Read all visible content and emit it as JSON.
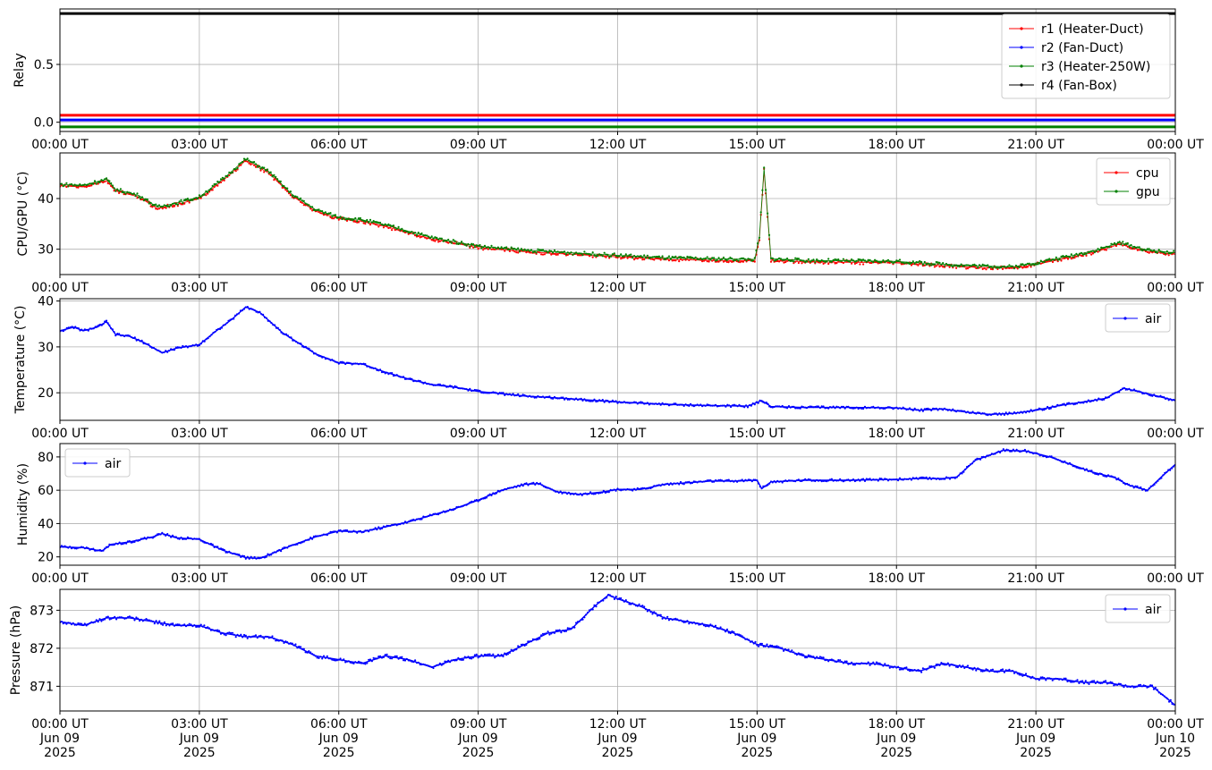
{
  "chart_data": [
    {
      "type": "line",
      "ylabel": "Relay",
      "ylim": [
        -0.08,
        0.98
      ],
      "yticks": [
        0.0,
        0.5
      ],
      "ytick_labels": [
        "0.0",
        "0.5"
      ],
      "xticks": [
        "00:00 UT",
        "03:00 UT",
        "06:00 UT",
        "09:00 UT",
        "12:00 UT",
        "15:00 UT",
        "18:00 UT",
        "21:00 UT",
        "00:00 UT"
      ],
      "grid": true,
      "legend": "top-right",
      "series": [
        {
          "name": "r1 (Heater-Duct)",
          "color": "#ff0000",
          "values": [
            [
              0,
              0.06
            ],
            [
              24,
              0.06
            ]
          ]
        },
        {
          "name": "r2 (Fan-Duct)",
          "color": "#0000ff",
          "values": [
            [
              0,
              0.02
            ],
            [
              24,
              0.02
            ]
          ]
        },
        {
          "name": "r3 (Heater-250W)",
          "color": "#008000",
          "values": [
            [
              0,
              -0.04
            ],
            [
              24,
              -0.04
            ]
          ]
        },
        {
          "name": "r4 (Fan-Box)",
          "color": "#000000",
          "values": [
            [
              0,
              0.94
            ],
            [
              24,
              0.94
            ]
          ]
        }
      ]
    },
    {
      "type": "line",
      "ylabel": "CPU/GPU (°C)",
      "ylim": [
        25,
        49
      ],
      "yticks": [
        30,
        40
      ],
      "ytick_labels": [
        "30",
        "40"
      ],
      "xticks": [
        "00:00 UT",
        "03:00 UT",
        "06:00 UT",
        "09:00 UT",
        "12:00 UT",
        "15:00 UT",
        "18:00 UT",
        "21:00 UT",
        "00:00 UT"
      ],
      "grid": true,
      "legend": "top-right",
      "series": [
        {
          "name": "cpu",
          "color": "#ff0000",
          "values": [
            [
              0,
              42.5
            ],
            [
              0.5,
              42.3
            ],
            [
              1,
              43.5
            ],
            [
              1.2,
              41.5
            ],
            [
              1.7,
              40.3
            ],
            [
              2.1,
              38
            ],
            [
              2.5,
              38.8
            ],
            [
              3,
              40
            ],
            [
              3.5,
              43.5
            ],
            [
              4,
              47.5
            ],
            [
              4.5,
              45
            ],
            [
              5,
              40.5
            ],
            [
              5.5,
              37.5
            ],
            [
              6,
              36
            ],
            [
              6.5,
              35.5
            ],
            [
              7,
              34.5
            ],
            [
              8,
              32
            ],
            [
              9,
              30.3
            ],
            [
              10,
              29.5
            ],
            [
              11,
              29
            ],
            [
              12,
              28.5
            ],
            [
              13,
              28
            ],
            [
              14,
              27.8
            ],
            [
              14.95,
              27.7
            ],
            [
              15.05,
              32
            ],
            [
              15.15,
              45.5
            ],
            [
              15.3,
              27.8
            ],
            [
              16,
              27.5
            ],
            [
              17,
              27.4
            ],
            [
              18,
              27.3
            ],
            [
              18.5,
              27
            ],
            [
              19.5,
              26.5
            ],
            [
              20.5,
              26.2
            ],
            [
              21,
              27
            ],
            [
              21.8,
              28.5
            ],
            [
              22.3,
              29.5
            ],
            [
              22.8,
              31
            ],
            [
              23.4,
              29.5
            ],
            [
              24,
              29
            ]
          ]
        },
        {
          "name": "gpu",
          "color": "#008000",
          "values": [
            [
              0,
              42.8
            ],
            [
              0.5,
              42.6
            ],
            [
              1,
              43.8
            ],
            [
              1.2,
              41.8
            ],
            [
              1.7,
              40.6
            ],
            [
              2.1,
              38.3
            ],
            [
              2.5,
              39.1
            ],
            [
              3,
              40.3
            ],
            [
              3.5,
              43.8
            ],
            [
              4,
              47.8
            ],
            [
              4.5,
              45.3
            ],
            [
              5,
              40.8
            ],
            [
              5.5,
              37.8
            ],
            [
              6,
              36.3
            ],
            [
              6.5,
              35.8
            ],
            [
              7,
              34.8
            ],
            [
              8,
              32.3
            ],
            [
              9,
              30.6
            ],
            [
              10,
              29.8
            ],
            [
              11,
              29.3
            ],
            [
              12,
              28.8
            ],
            [
              13,
              28.3
            ],
            [
              14,
              28.1
            ],
            [
              14.95,
              28
            ],
            [
              15.05,
              32.5
            ],
            [
              15.15,
              46
            ],
            [
              15.3,
              28.1
            ],
            [
              16,
              27.8
            ],
            [
              17,
              27.7
            ],
            [
              18,
              27.6
            ],
            [
              18.5,
              27.3
            ],
            [
              19.5,
              26.8
            ],
            [
              20.5,
              26.5
            ],
            [
              21,
              27.3
            ],
            [
              21.8,
              28.8
            ],
            [
              22.3,
              29.8
            ],
            [
              22.8,
              31.3
            ],
            [
              23.4,
              29.8
            ],
            [
              24,
              29.3
            ]
          ]
        }
      ]
    },
    {
      "type": "line",
      "ylabel": "Temperature (°C)",
      "ylim": [
        14,
        40.5
      ],
      "yticks": [
        20,
        30,
        40
      ],
      "ytick_labels": [
        "20",
        "30",
        "40"
      ],
      "xticks": [
        "00:00 UT",
        "03:00 UT",
        "06:00 UT",
        "09:00 UT",
        "12:00 UT",
        "15:00 UT",
        "18:00 UT",
        "21:00 UT",
        "00:00 UT"
      ],
      "grid": true,
      "legend": "top-right",
      "series": [
        {
          "name": "air",
          "color": "#0000ff",
          "values": [
            [
              0,
              33.5
            ],
            [
              0.3,
              34.3
            ],
            [
              0.5,
              33.5
            ],
            [
              0.8,
              34.3
            ],
            [
              1,
              35.5
            ],
            [
              1.2,
              32.7
            ],
            [
              1.5,
              32.3
            ],
            [
              1.8,
              31
            ],
            [
              2.2,
              28.7
            ],
            [
              2.5,
              29.7
            ],
            [
              3,
              30.5
            ],
            [
              3.3,
              33
            ],
            [
              3.7,
              36
            ],
            [
              4,
              38.7
            ],
            [
              4.3,
              37.5
            ],
            [
              4.8,
              33
            ],
            [
              5.5,
              28.5
            ],
            [
              6,
              26.5
            ],
            [
              6.5,
              26.3
            ],
            [
              7,
              24.5
            ],
            [
              7.5,
              23
            ],
            [
              8,
              21.8
            ],
            [
              8.5,
              21.2
            ],
            [
              9,
              20.3
            ],
            [
              10,
              19.3
            ],
            [
              11,
              18.7
            ],
            [
              12,
              18
            ],
            [
              13,
              17.5
            ],
            [
              14,
              17.2
            ],
            [
              14.8,
              17.1
            ],
            [
              15.1,
              18.3
            ],
            [
              15.3,
              17
            ],
            [
              16,
              16.8
            ],
            [
              17,
              16.8
            ],
            [
              18,
              16.7
            ],
            [
              18.5,
              16.2
            ],
            [
              19,
              16.5
            ],
            [
              19.5,
              15.8
            ],
            [
              20,
              15.3
            ],
            [
              20.5,
              15.5
            ],
            [
              21,
              16.2
            ],
            [
              21.5,
              17.2
            ],
            [
              22.2,
              18.3
            ],
            [
              22.5,
              18.8
            ],
            [
              22.9,
              21
            ],
            [
              23.4,
              19.8
            ],
            [
              24,
              18.3
            ]
          ]
        }
      ]
    },
    {
      "type": "line",
      "ylabel": "Humidity (%)",
      "ylim": [
        15,
        88
      ],
      "yticks": [
        20,
        40,
        60,
        80
      ],
      "ytick_labels": [
        "20",
        "40",
        "60",
        "80"
      ],
      "xticks": [
        "00:00 UT",
        "03:00 UT",
        "06:00 UT",
        "09:00 UT",
        "12:00 UT",
        "15:00 UT",
        "18:00 UT",
        "21:00 UT",
        "00:00 UT"
      ],
      "grid": true,
      "legend": "top-left",
      "series": [
        {
          "name": "air",
          "color": "#0000ff",
          "values": [
            [
              0,
              26
            ],
            [
              0.5,
              25.5
            ],
            [
              0.9,
              23.5
            ],
            [
              1.1,
              27.5
            ],
            [
              1.5,
              29
            ],
            [
              2,
              32
            ],
            [
              2.2,
              34
            ],
            [
              2.5,
              31.5
            ],
            [
              3,
              30.5
            ],
            [
              3.5,
              24
            ],
            [
              4,
              19.5
            ],
            [
              4.3,
              19
            ],
            [
              5,
              27
            ],
            [
              5.5,
              32
            ],
            [
              6,
              35.5
            ],
            [
              6.5,
              35
            ],
            [
              7,
              38
            ],
            [
              7.5,
              41
            ],
            [
              8,
              45
            ],
            [
              8.5,
              49
            ],
            [
              9,
              54
            ],
            [
              9.5,
              60
            ],
            [
              10,
              63.5
            ],
            [
              10.3,
              64
            ],
            [
              10.7,
              59
            ],
            [
              11.2,
              57.5
            ],
            [
              11.7,
              59
            ],
            [
              12,
              60.5
            ],
            [
              12.5,
              60.5
            ],
            [
              13,
              63.5
            ],
            [
              13.5,
              64.5
            ],
            [
              14,
              65.5
            ],
            [
              14.5,
              65.5
            ],
            [
              15,
              66
            ],
            [
              15.1,
              61
            ],
            [
              15.3,
              65
            ],
            [
              16,
              66
            ],
            [
              17,
              66
            ],
            [
              18,
              66.5
            ],
            [
              18.5,
              67
            ],
            [
              19,
              67
            ],
            [
              19.3,
              68
            ],
            [
              19.7,
              78
            ],
            [
              20.3,
              84
            ],
            [
              20.8,
              83.5
            ],
            [
              21.3,
              80
            ],
            [
              21.8,
              75
            ],
            [
              22.2,
              71
            ],
            [
              22.7,
              67.5
            ],
            [
              23,
              63
            ],
            [
              23.4,
              60
            ],
            [
              23.7,
              68
            ],
            [
              24,
              75.5
            ]
          ]
        }
      ]
    },
    {
      "type": "line",
      "ylabel": "Pressure (hPa)",
      "ylim": [
        870.35,
        873.55
      ],
      "yticks": [
        871,
        872,
        873
      ],
      "ytick_labels": [
        "871",
        "872",
        "873"
      ],
      "xticks": [
        "00:00 UT",
        "03:00 UT",
        "06:00 UT",
        "09:00 UT",
        "12:00 UT",
        "15:00 UT",
        "18:00 UT",
        "21:00 UT",
        "00:00 UT"
      ],
      "xtick_dates": [
        "Jun 09",
        "Jun 09",
        "Jun 09",
        "Jun 09",
        "Jun 09",
        "Jun 09",
        "Jun 09",
        "Jun 09",
        "Jun 10"
      ],
      "xtick_years": [
        "2025",
        "2025",
        "2025",
        "2025",
        "2025",
        "2025",
        "2025",
        "2025",
        "2025"
      ],
      "grid": true,
      "legend": "top-right",
      "series": [
        {
          "name": "air",
          "color": "#0000ff",
          "values": [
            [
              0,
              872.7
            ],
            [
              0.5,
              872.6
            ],
            [
              1,
              872.8
            ],
            [
              1.5,
              872.8
            ],
            [
              2,
              872.7
            ],
            [
              2.5,
              872.6
            ],
            [
              3,
              872.6
            ],
            [
              3.5,
              872.4
            ],
            [
              4,
              872.3
            ],
            [
              4.5,
              872.3
            ],
            [
              5,
              872.1
            ],
            [
              5.5,
              871.8
            ],
            [
              6,
              871.7
            ],
            [
              6.5,
              871.6
            ],
            [
              7,
              871.8
            ],
            [
              7.5,
              871.7
            ],
            [
              8,
              871.5
            ],
            [
              8.5,
              871.7
            ],
            [
              9,
              871.8
            ],
            [
              9.5,
              871.8
            ],
            [
              10,
              872.1
            ],
            [
              10.5,
              872.4
            ],
            [
              11,
              872.5
            ],
            [
              11.5,
              873.1
            ],
            [
              11.8,
              873.4
            ],
            [
              12,
              873.3
            ],
            [
              12.5,
              873.1
            ],
            [
              13,
              872.8
            ],
            [
              13.5,
              872.7
            ],
            [
              14,
              872.6
            ],
            [
              14.5,
              872.4
            ],
            [
              15,
              872.1
            ],
            [
              15.5,
              872
            ],
            [
              16,
              871.8
            ],
            [
              16.5,
              871.7
            ],
            [
              17,
              871.6
            ],
            [
              17.5,
              871.6
            ],
            [
              18,
              871.5
            ],
            [
              18.5,
              871.4
            ],
            [
              19,
              871.6
            ],
            [
              19.5,
              871.5
            ],
            [
              20,
              871.4
            ],
            [
              20.5,
              871.4
            ],
            [
              21,
              871.2
            ],
            [
              21.5,
              871.2
            ],
            [
              22,
              871.1
            ],
            [
              22.5,
              871.1
            ],
            [
              23,
              871
            ],
            [
              23.5,
              871
            ],
            [
              23.8,
              870.7
            ],
            [
              24,
              870.5
            ]
          ]
        }
      ]
    }
  ]
}
